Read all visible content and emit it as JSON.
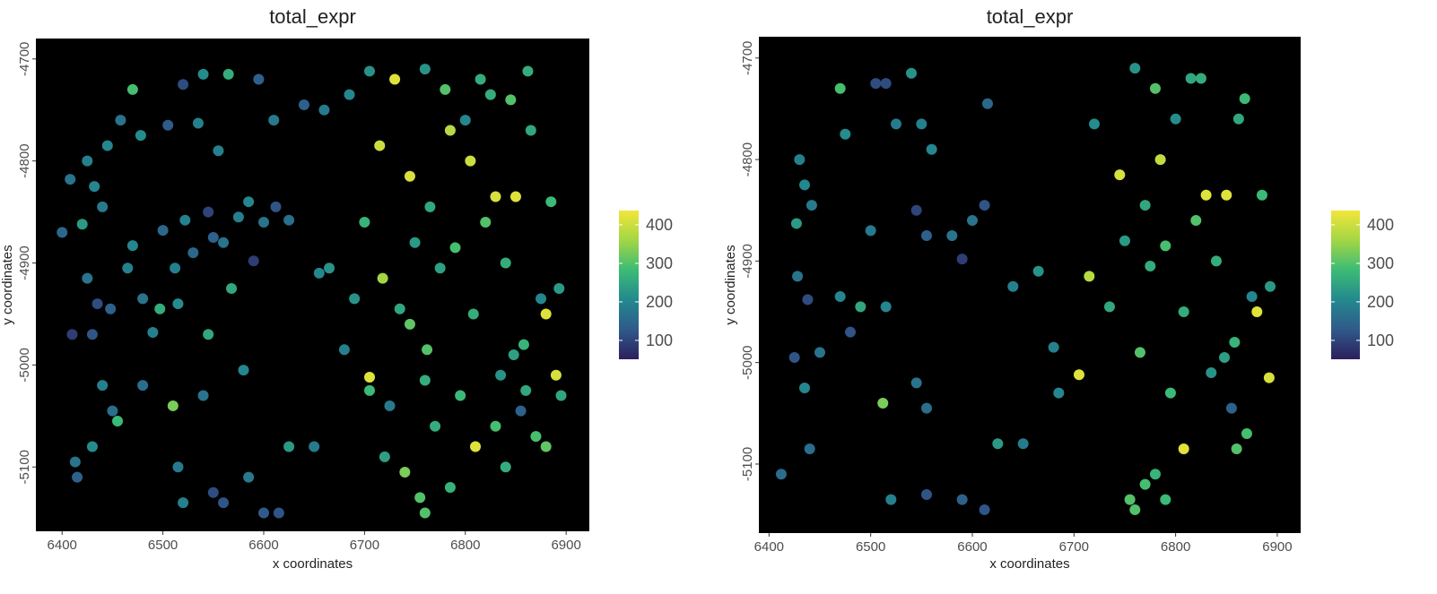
{
  "chart_data": [
    {
      "type": "scatter",
      "title": "total_expr",
      "xlabel": "x coordinates",
      "ylabel": "y coordinates",
      "xlim": [
        6374,
        6923
      ],
      "ylim": [
        -5163,
        -4680
      ],
      "xticks": [
        6400,
        6500,
        6600,
        6700,
        6800,
        6900
      ],
      "yticks": [
        -5100,
        -5000,
        -4900,
        -4800,
        -4700
      ],
      "clim": [
        51,
        437
      ],
      "cticks": [
        100,
        200,
        300,
        400
      ],
      "colormap": [
        "#2c1f5e",
        "#2f5a8a",
        "#23898e",
        "#3cbb75",
        "#a2d645",
        "#f2e63a"
      ],
      "x": [
        6400,
        6408,
        6410,
        6413,
        6415,
        6420,
        6425,
        6425,
        6430,
        6430,
        6432,
        6435,
        6440,
        6445,
        6448,
        6450,
        6455,
        6458,
        6465,
        6470,
        6470,
        6478,
        6480,
        6490,
        6497,
        6500,
        6505,
        6510,
        6512,
        6515,
        6520,
        6522,
        6530,
        6535,
        6540,
        6545,
        6545,
        6550,
        6555,
        6560,
        6565,
        6568,
        6575,
        6580,
        6585,
        6590,
        6595,
        6600,
        6612,
        6610,
        6625,
        6640,
        6655,
        6660,
        6665,
        6680,
        6685,
        6690,
        6700,
        6705,
        6705,
        6715,
        6718,
        6730,
        6735,
        6740,
        6745,
        6750,
        6755,
        6760,
        6762,
        6765,
        6770,
        6775,
        6780,
        6785,
        6790,
        6795,
        6800,
        6805,
        6808,
        6810,
        6815,
        6820,
        6825,
        6830,
        6835,
        6840,
        6845,
        6848,
        6850,
        6855,
        6858,
        6862,
        6865,
        6870,
        6875,
        6880,
        6885,
        6890,
        6893,
        6895,
        6880,
        6830,
        6760,
        6720,
        6860,
        6840,
        6785,
        6760,
        6600,
        6615,
        6560,
        6520,
        6585,
        6550,
        6515,
        6480,
        6440,
        6540,
        6625,
        6650,
        6705,
        6725,
        6745
      ],
      "y": [
        -4870,
        -4818,
        -4970,
        -5095,
        -5110,
        -4862,
        -4800,
        -4915,
        -4970,
        -5080,
        -4825,
        -4940,
        -4845,
        -4785,
        -4945,
        -5045,
        -5055,
        -4760,
        -4905,
        -4730,
        -4883,
        -4775,
        -4935,
        -4968,
        -4945,
        -4868,
        -4765,
        -5040,
        -4905,
        -4940,
        -4725,
        -4858,
        -4890,
        -4763,
        -4715,
        -4850,
        -4970,
        -4875,
        -4790,
        -4880,
        -4715,
        -4925,
        -4855,
        -5005,
        -4840,
        -4898,
        -4720,
        -4860,
        -4845,
        -4760,
        -4858,
        -4745,
        -4910,
        -4750,
        -4905,
        -4985,
        -4735,
        -4935,
        -4860,
        -4712,
        -5012,
        -4785,
        -4915,
        -4720,
        -4945,
        -5105,
        -4815,
        -4880,
        -5130,
        -4710,
        -4985,
        -4845,
        -5060,
        -4905,
        -4730,
        -4770,
        -4885,
        -5030,
        -4760,
        -4800,
        -4950,
        -5080,
        -4720,
        -4860,
        -4735,
        -4835,
        -5010,
        -4900,
        -4740,
        -4990,
        -4835,
        -5045,
        -4980,
        -4712,
        -4770,
        -5070,
        -4935,
        -4950,
        -4840,
        -5010,
        -4925,
        -5030,
        -5080,
        -5060,
        -5015,
        -5090,
        -5025,
        -5100,
        -5120,
        -5145,
        -5145,
        -5145,
        -5135,
        -5135,
        -5110,
        -5125,
        -5100,
        -5020,
        -5020,
        -5030,
        -5080,
        -5080,
        -5025,
        -5040,
        -4960
      ],
      "values": [
        150,
        170,
        90,
        170,
        140,
        230,
        190,
        170,
        120,
        210,
        200,
        110,
        180,
        200,
        140,
        160,
        280,
        170,
        190,
        290,
        200,
        210,
        170,
        190,
        260,
        150,
        130,
        330,
        190,
        210,
        110,
        190,
        150,
        190,
        210,
        100,
        250,
        140,
        190,
        170,
        260,
        250,
        190,
        200,
        200,
        90,
        140,
        170,
        120,
        180,
        160,
        140,
        200,
        180,
        220,
        190,
        200,
        220,
        270,
        220,
        420,
        400,
        360,
        420,
        250,
        330,
        410,
        230,
        300,
        220,
        300,
        250,
        260,
        240,
        300,
        380,
        290,
        280,
        200,
        400,
        260,
        420,
        260,
        300,
        260,
        410,
        220,
        260,
        300,
        240,
        420,
        140,
        270,
        260,
        250,
        290,
        200,
        420,
        280,
        410,
        230,
        250,
        310,
        290,
        260,
        240,
        250,
        260,
        270,
        300,
        130,
        120,
        120,
        190,
        180,
        110,
        180,
        160,
        190,
        170,
        230,
        180,
        280,
        180,
        310
      ]
    },
    {
      "type": "scatter",
      "title": "total_expr",
      "xlabel": "x coordinates",
      "ylabel": "y coordinates",
      "xlim": [
        6390,
        6923
      ],
      "ylim": [
        -5168,
        -4679
      ],
      "xticks": [
        6400,
        6500,
        6600,
        6700,
        6800,
        6900
      ],
      "yticks": [
        -5100,
        -5000,
        -4900,
        -4800,
        -4700
      ],
      "clim": [
        51,
        437
      ],
      "cticks": [
        100,
        200,
        300,
        400
      ],
      "colormap": [
        "#2c1f5e",
        "#2f5a8a",
        "#23898e",
        "#3cbb75",
        "#a2d645",
        "#f2e63a"
      ],
      "x": [
        6412,
        6425,
        6427,
        6428,
        6430,
        6435,
        6438,
        6440,
        6442,
        6435,
        6450,
        6470,
        6470,
        6475,
        6480,
        6490,
        6500,
        6505,
        6515,
        6512,
        6515,
        6525,
        6540,
        6545,
        6550,
        6560,
        6555,
        6580,
        6590,
        6600,
        6612,
        6615,
        6625,
        6640,
        6650,
        6665,
        6680,
        6685,
        6705,
        6715,
        6720,
        6735,
        6745,
        6750,
        6755,
        6760,
        6765,
        6770,
        6775,
        6780,
        6785,
        6790,
        6795,
        6800,
        6808,
        6808,
        6815,
        6820,
        6825,
        6830,
        6835,
        6840,
        6848,
        6850,
        6855,
        6858,
        6862,
        6868,
        6870,
        6875,
        6880,
        6885,
        6892,
        6893,
        6860,
        6780,
        6770,
        6790,
        6760,
        6612,
        6590,
        6555,
        6520,
        6555,
        6545
      ],
      "y": [
        -5110,
        -4995,
        -4863,
        -4915,
        -4800,
        -4825,
        -4938,
        -5085,
        -4845,
        -5025,
        -4990,
        -4730,
        -4935,
        -4775,
        -4970,
        -4945,
        -4870,
        -4725,
        -4725,
        -5040,
        -4945,
        -4765,
        -4715,
        -4850,
        -4765,
        -4790,
        -4875,
        -4875,
        -4898,
        -4860,
        -4845,
        -4745,
        -5080,
        -4925,
        -5080,
        -4910,
        -4985,
        -5030,
        -5012,
        -4915,
        -4765,
        -4945,
        -4815,
        -4880,
        -5135,
        -4710,
        -4990,
        -4845,
        -4905,
        -4730,
        -4800,
        -4885,
        -5030,
        -4760,
        -4950,
        -5085,
        -4720,
        -4860,
        -4720,
        -4835,
        -5010,
        -4900,
        -4995,
        -4835,
        -5045,
        -4980,
        -4760,
        -4740,
        -5070,
        -4935,
        -4950,
        -4835,
        -5015,
        -4925,
        -5085,
        -5110,
        -5120,
        -5135,
        -5145,
        -5145,
        -5135,
        -5130,
        -5135,
        -5045,
        -5020
      ],
      "values": [
        160,
        120,
        230,
        170,
        190,
        200,
        110,
        160,
        180,
        200,
        170,
        290,
        200,
        210,
        120,
        250,
        180,
        110,
        110,
        330,
        200,
        180,
        220,
        100,
        190,
        200,
        140,
        170,
        90,
        170,
        120,
        150,
        230,
        190,
        180,
        220,
        190,
        200,
        420,
        380,
        210,
        250,
        410,
        230,
        300,
        220,
        300,
        250,
        260,
        300,
        390,
        290,
        280,
        210,
        260,
        420,
        250,
        300,
        260,
        420,
        220,
        260,
        240,
        420,
        140,
        270,
        250,
        280,
        290,
        200,
        420,
        280,
        410,
        230,
        300,
        270,
        290,
        280,
        300,
        120,
        140,
        120,
        190,
        160,
        170
      ]
    }
  ]
}
